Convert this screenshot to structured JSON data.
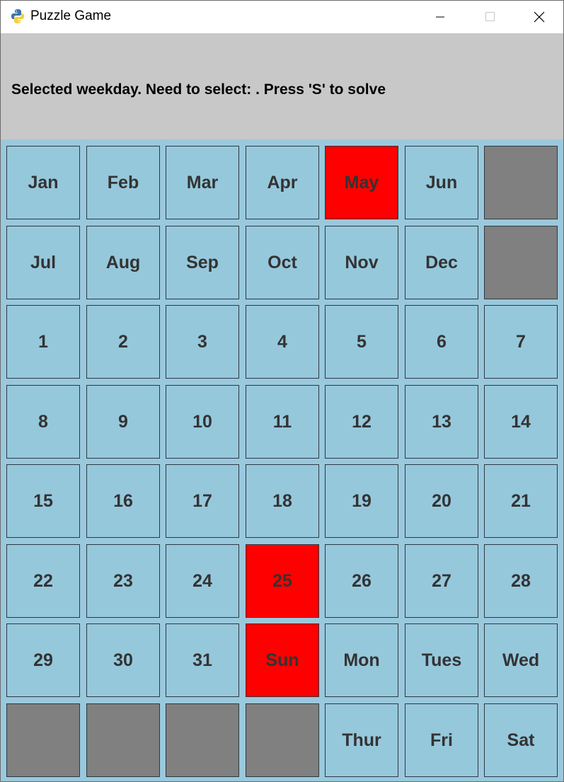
{
  "window": {
    "title": "Puzzle Game",
    "app_icon": "python-icon",
    "controls": [
      "minimize-icon",
      "maximize-icon",
      "close-icon"
    ]
  },
  "status": {
    "message": "Selected weekday. Need to select: . Press 'S' to solve"
  },
  "colors": {
    "cell": "#96c8dc",
    "selected": "#ff0000",
    "blocked": "#808080",
    "header": "#c8c8c8",
    "text": "#333333"
  },
  "board": {
    "rows": [
      [
        {
          "label": "Jan",
          "state": "normal"
        },
        {
          "label": "Feb",
          "state": "normal"
        },
        {
          "label": "Mar",
          "state": "normal"
        },
        {
          "label": "Apr",
          "state": "normal"
        },
        {
          "label": "May",
          "state": "selected"
        },
        {
          "label": "Jun",
          "state": "normal"
        },
        {
          "label": "",
          "state": "blocked"
        }
      ],
      [
        {
          "label": "Jul",
          "state": "normal"
        },
        {
          "label": "Aug",
          "state": "normal"
        },
        {
          "label": "Sep",
          "state": "normal"
        },
        {
          "label": "Oct",
          "state": "normal"
        },
        {
          "label": "Nov",
          "state": "normal"
        },
        {
          "label": "Dec",
          "state": "normal"
        },
        {
          "label": "",
          "state": "blocked"
        }
      ],
      [
        {
          "label": "1",
          "state": "normal"
        },
        {
          "label": "2",
          "state": "normal"
        },
        {
          "label": "3",
          "state": "normal"
        },
        {
          "label": "4",
          "state": "normal"
        },
        {
          "label": "5",
          "state": "normal"
        },
        {
          "label": "6",
          "state": "normal"
        },
        {
          "label": "7",
          "state": "normal"
        }
      ],
      [
        {
          "label": "8",
          "state": "normal"
        },
        {
          "label": "9",
          "state": "normal"
        },
        {
          "label": "10",
          "state": "normal"
        },
        {
          "label": "11",
          "state": "normal"
        },
        {
          "label": "12",
          "state": "normal"
        },
        {
          "label": "13",
          "state": "normal"
        },
        {
          "label": "14",
          "state": "normal"
        }
      ],
      [
        {
          "label": "15",
          "state": "normal"
        },
        {
          "label": "16",
          "state": "normal"
        },
        {
          "label": "17",
          "state": "normal"
        },
        {
          "label": "18",
          "state": "normal"
        },
        {
          "label": "19",
          "state": "normal"
        },
        {
          "label": "20",
          "state": "normal"
        },
        {
          "label": "21",
          "state": "normal"
        }
      ],
      [
        {
          "label": "22",
          "state": "normal"
        },
        {
          "label": "23",
          "state": "normal"
        },
        {
          "label": "24",
          "state": "normal"
        },
        {
          "label": "25",
          "state": "selected"
        },
        {
          "label": "26",
          "state": "normal"
        },
        {
          "label": "27",
          "state": "normal"
        },
        {
          "label": "28",
          "state": "normal"
        }
      ],
      [
        {
          "label": "29",
          "state": "normal"
        },
        {
          "label": "30",
          "state": "normal"
        },
        {
          "label": "31",
          "state": "normal"
        },
        {
          "label": "Sun",
          "state": "selected"
        },
        {
          "label": "Mon",
          "state": "normal"
        },
        {
          "label": "Tues",
          "state": "normal"
        },
        {
          "label": "Wed",
          "state": "normal"
        }
      ],
      [
        {
          "label": "",
          "state": "blocked"
        },
        {
          "label": "",
          "state": "blocked"
        },
        {
          "label": "",
          "state": "blocked"
        },
        {
          "label": "",
          "state": "blocked"
        },
        {
          "label": "Thur",
          "state": "normal"
        },
        {
          "label": "Fri",
          "state": "normal"
        },
        {
          "label": "Sat",
          "state": "normal"
        }
      ]
    ]
  }
}
